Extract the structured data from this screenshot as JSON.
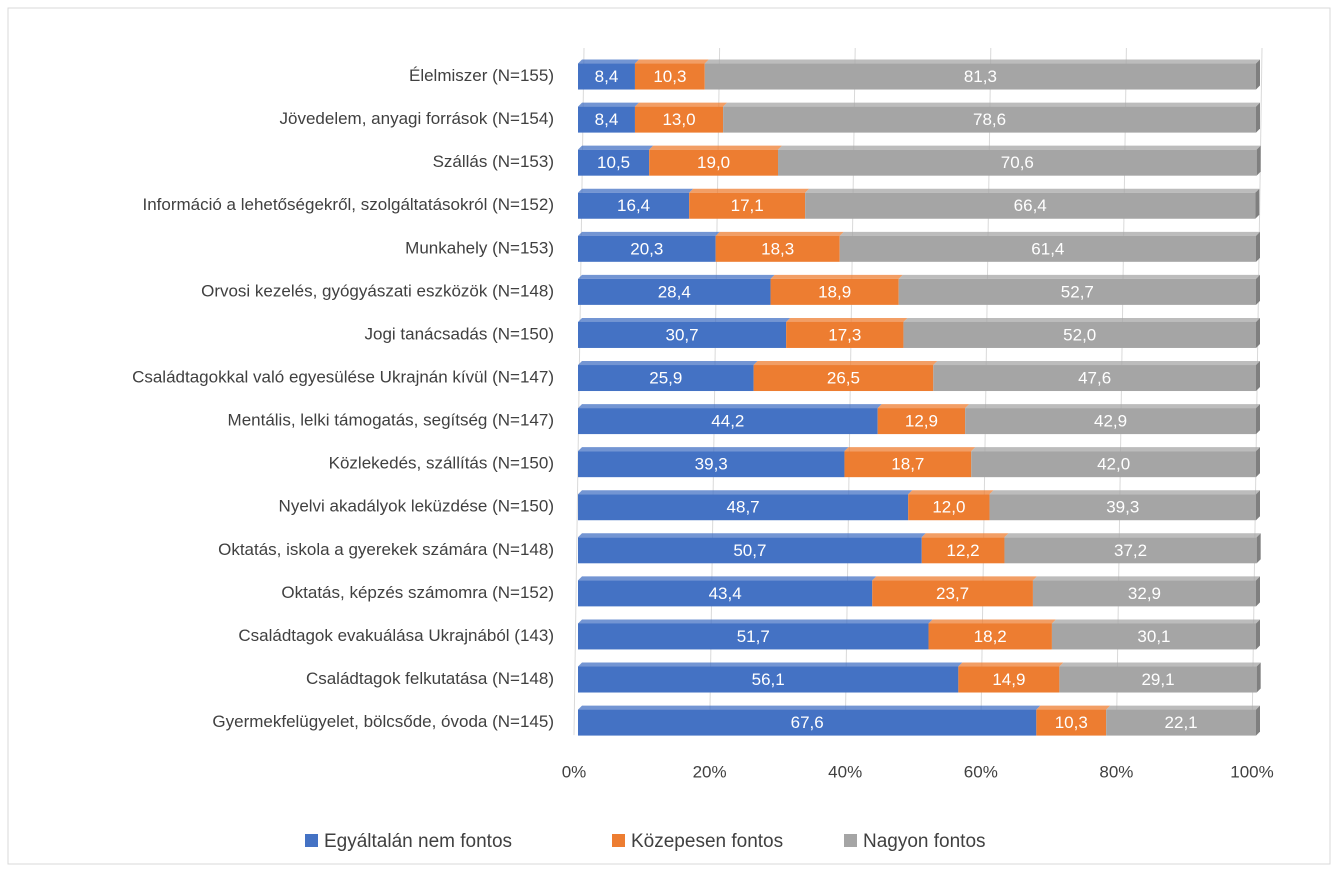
{
  "chart_data": {
    "type": "stacked_bar_horizontal",
    "categories": [
      "Élelmiszer (N=155)",
      "Jövedelem, anyagi források (N=154)",
      "Szállás (N=153)",
      "Információ a lehetőségekről, szolgáltatásokról (N=152)",
      "Munkahely (N=153)",
      "Orvosi kezelés, gyógyászati eszközök (N=148)",
      "Jogi tanácsadás (N=150)",
      "Családtagokkal való egyesülése Ukrajnán kívül (N=147)",
      "Mentális, lelki támogatás, segítség (N=147)",
      "Közlekedés, szállítás (N=150)",
      "Nyelvi akadályok leküzdése (N=150)",
      "Oktatás, iskola a gyerekek számára (N=148)",
      "Oktatás, képzés számomra (N=152)",
      "Családtagok evakuálása Ukrajnából (143)",
      "Családtagok felkutatása (N=148)",
      "Gyermekfelügyelet, bölcsőde, óvoda (N=145)"
    ],
    "series": [
      {
        "name": "Egyáltalán nem fontos",
        "color": "#4472c4",
        "values": [
          8.4,
          8.4,
          10.5,
          16.4,
          20.3,
          28.4,
          30.7,
          25.9,
          44.2,
          39.3,
          48.7,
          50.7,
          43.4,
          51.7,
          56.1,
          67.6
        ],
        "value_labels": [
          "8,4",
          "8,4",
          "10,5",
          "16,4",
          "20,3",
          "28,4",
          "30,7",
          "25,9",
          "44,2",
          "39,3",
          "48,7",
          "50,7",
          "43,4",
          "51,7",
          "56,1",
          "67,6"
        ]
      },
      {
        "name": "Közepesen fontos",
        "color": "#ed7d31",
        "values": [
          10.3,
          13.0,
          19.0,
          17.1,
          18.3,
          18.9,
          17.3,
          26.5,
          12.9,
          18.7,
          12.0,
          12.2,
          23.7,
          18.2,
          14.9,
          10.3
        ],
        "value_labels": [
          "10,3",
          "13,0",
          "19,0",
          "17,1",
          "18,3",
          "18,9",
          "17,3",
          "26,5",
          "12,9",
          "18,7",
          "12,0",
          "12,2",
          "23,7",
          "18,2",
          "14,9",
          "10,3"
        ]
      },
      {
        "name": "Nagyon fontos",
        "color": "#a5a5a5",
        "values": [
          81.3,
          78.6,
          70.6,
          66.4,
          61.4,
          52.7,
          52.0,
          47.6,
          42.9,
          42.0,
          39.3,
          37.2,
          32.9,
          30.1,
          29.1,
          22.1
        ],
        "value_labels": [
          "81,3",
          "78,6",
          "70,6",
          "66,4",
          "61,4",
          "52,7",
          "52,0",
          "47,6",
          "42,9",
          "42,0",
          "39,3",
          "37,2",
          "32,9",
          "30,1",
          "29,1",
          "22,1"
        ]
      }
    ],
    "xlim": [
      0,
      100
    ],
    "xticks": [
      {
        "value": 0,
        "label": "0%"
      },
      {
        "value": 20,
        "label": "20%"
      },
      {
        "value": 40,
        "label": "40%"
      },
      {
        "value": 60,
        "label": "60%"
      },
      {
        "value": 80,
        "label": "80%"
      },
      {
        "value": 100,
        "label": "100%"
      }
    ],
    "grid": true,
    "legend": "bottom"
  }
}
